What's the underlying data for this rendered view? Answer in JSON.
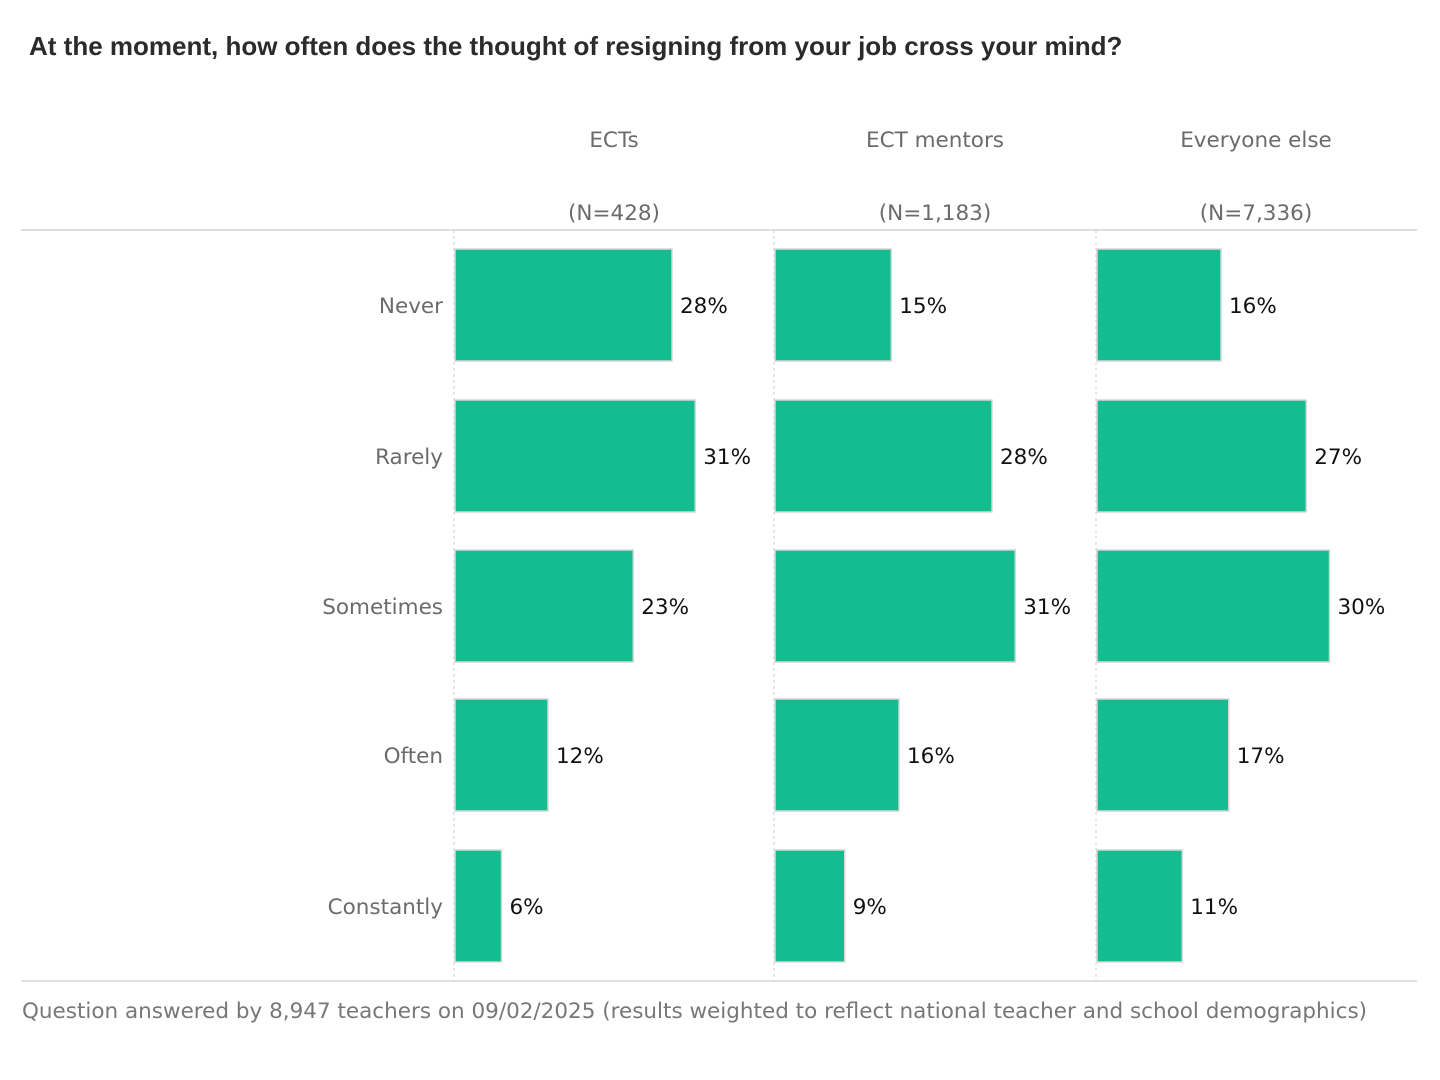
{
  "title": "At the moment, how often does the thought of resigning from your job cross your mind?",
  "footnote": "Question answered by 8,947 teachers on 09/02/2025 (results weighted to reflect national teacher and school demographics)",
  "colors": {
    "bar": "#13bd8f",
    "bar_stroke": "#d7d7d7",
    "axis_label": "#6b6b6b",
    "value_label": "#111111",
    "rule": "#cccccc",
    "gridline": "#cfcfcf"
  },
  "chart_data": {
    "type": "bar",
    "orientation": "horizontal",
    "facets": "columns",
    "title": "At the moment, how often does the thought of resigning from your job cross your mind?",
    "categories": [
      "Never",
      "Rarely",
      "Sometimes",
      "Often",
      "Constantly"
    ],
    "xlim": [
      0,
      40
    ],
    "unit": "%",
    "series": [
      {
        "name": "ECTs",
        "sample": "(N=428)",
        "values": [
          28,
          31,
          23,
          12,
          6
        ]
      },
      {
        "name": "ECT mentors",
        "sample": "(N=1,183)",
        "values": [
          15,
          28,
          31,
          16,
          9
        ]
      },
      {
        "name": "Everyone else",
        "sample": "(N=7,336)",
        "values": [
          16,
          27,
          30,
          17,
          11
        ]
      }
    ]
  }
}
